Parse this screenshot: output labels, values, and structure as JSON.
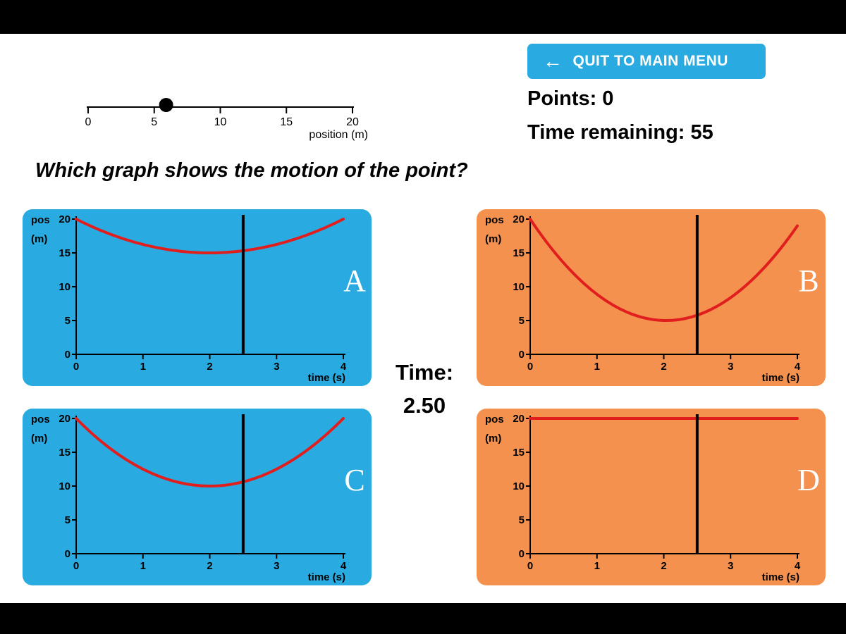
{
  "colors": {
    "blue": "#29ABE2",
    "orange": "#F4914E",
    "red": "#E11E1E",
    "black": "#000000",
    "white": "#FFFFFF"
  },
  "header": {
    "quit_arrow": "←",
    "quit_button": "QUIT TO MAIN MENU",
    "points_label": "Points:",
    "points_value": "0",
    "time_remaining_label": "Time remaining:",
    "time_remaining_value": "55"
  },
  "position_line": {
    "min": 0,
    "max": 20,
    "ticks": [
      0,
      5,
      10,
      15,
      20
    ],
    "axis_label": "position (m)",
    "dot_value": 5.9
  },
  "question": "Which graph shows the motion of the point?",
  "time_display": {
    "label": "Time:",
    "value": "2.50"
  },
  "chart_data": [
    {
      "label": "A",
      "type": "line",
      "bg": "blue",
      "ylabel_line1": "pos",
      "ylabel_line2": "(m)",
      "xlabel": "time (s)",
      "x_ticks": [
        0,
        1,
        2,
        3,
        4
      ],
      "y_ticks": [
        0,
        5,
        10,
        15,
        20
      ],
      "xlim": [
        0,
        4
      ],
      "ylim": [
        0,
        20
      ],
      "marker_time": 2.5,
      "curve": {
        "shape": "parabola",
        "y_start": 20,
        "y_min": 15,
        "y_end": 20
      }
    },
    {
      "label": "B",
      "type": "line",
      "bg": "orange",
      "ylabel_line1": "pos",
      "ylabel_line2": "(m)",
      "xlabel": "time (s)",
      "x_ticks": [
        0,
        1,
        2,
        3,
        4
      ],
      "y_ticks": [
        0,
        5,
        10,
        15,
        20
      ],
      "xlim": [
        0,
        4
      ],
      "ylim": [
        0,
        20
      ],
      "marker_time": 2.5,
      "curve": {
        "shape": "parabola",
        "y_start": 20,
        "y_min": 5,
        "y_end": 19
      }
    },
    {
      "label": "C",
      "type": "line",
      "bg": "blue",
      "ylabel_line1": "pos",
      "ylabel_line2": "(m)",
      "xlabel": "time (s)",
      "x_ticks": [
        0,
        1,
        2,
        3,
        4
      ],
      "y_ticks": [
        0,
        5,
        10,
        15,
        20
      ],
      "xlim": [
        0,
        4
      ],
      "ylim": [
        0,
        20
      ],
      "marker_time": 2.5,
      "curve": {
        "shape": "parabola",
        "y_start": 20,
        "y_min": 10,
        "y_end": 20
      }
    },
    {
      "label": "D",
      "type": "line",
      "bg": "orange",
      "ylabel_line1": "pos",
      "ylabel_line2": "(m)",
      "xlabel": "time (s)",
      "x_ticks": [
        0,
        1,
        2,
        3,
        4
      ],
      "y_ticks": [
        0,
        5,
        10,
        15,
        20
      ],
      "xlim": [
        0,
        4
      ],
      "ylim": [
        0,
        20
      ],
      "marker_time": 2.5,
      "curve": {
        "shape": "constant",
        "y_start": 20,
        "y_min": 20,
        "y_end": 20
      }
    }
  ]
}
